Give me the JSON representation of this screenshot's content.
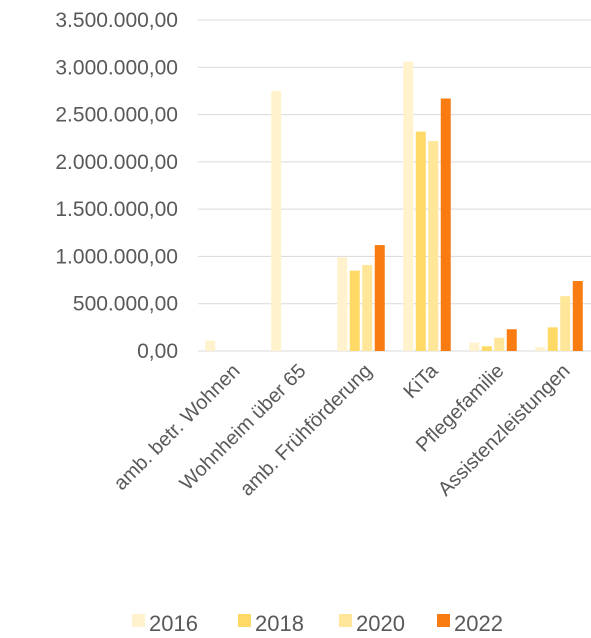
{
  "chart_data": {
    "type": "bar",
    "categories": [
      "amb. betr. Wohnen",
      "Wohnheim über 65",
      "amb. Frühförderung",
      "KiTa",
      "Pflegefamilie",
      "Assistenzleistungen"
    ],
    "series": [
      {
        "name": "2016",
        "color": "#FFF2CC",
        "values": [
          110000,
          2750000,
          990000,
          3060000,
          90000,
          40000
        ]
      },
      {
        "name": "2018",
        "color": "#FFD966",
        "values": [
          0,
          0,
          850000,
          2320000,
          50000,
          250000
        ]
      },
      {
        "name": "2020",
        "color": "#FFE699",
        "values": [
          0,
          0,
          910000,
          2220000,
          140000,
          580000
        ]
      },
      {
        "name": "2022",
        "color": "#F97C12",
        "values": [
          0,
          0,
          1120000,
          2670000,
          230000,
          740000
        ]
      }
    ],
    "ylim": [
      0,
      3500000
    ],
    "yticks": [
      0,
      500000,
      1000000,
      1500000,
      2000000,
      2500000,
      3000000,
      3500000
    ],
    "ytick_labels": [
      "0,00",
      "500.000,00",
      "1.000.000,00",
      "1.500.000,00",
      "2.000.000,00",
      "2.500.000,00",
      "3.000.000,00",
      "3.500.000,00"
    ],
    "grid": true,
    "legend_position": "bottom"
  }
}
